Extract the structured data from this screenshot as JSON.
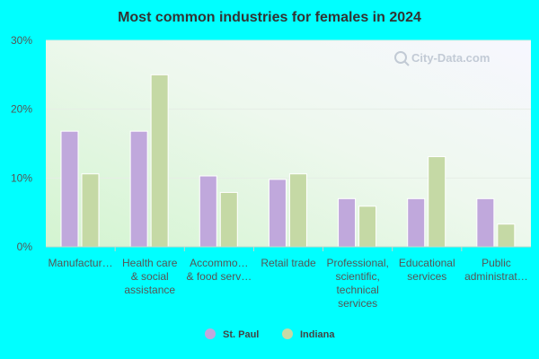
{
  "watermark": "City-Data.com",
  "chart_data": {
    "type": "bar",
    "title": "Most common industries for females in 2024",
    "xlabel": "",
    "ylabel": "",
    "ylim": [
      0,
      30
    ],
    "y_ticks": [
      0,
      10,
      20,
      30
    ],
    "y_tick_labels": [
      "0%",
      "10%",
      "20%",
      "30%"
    ],
    "grid": true,
    "legend_position": "bottom",
    "categories": [
      [
        "Manufactur…"
      ],
      [
        "Health care",
        "& social",
        "assistance"
      ],
      [
        "Accommo…",
        "& food serv…"
      ],
      [
        "Retail trade"
      ],
      [
        "Professional,",
        "scientific,",
        "technical",
        "services"
      ],
      [
        "Educational",
        "services"
      ],
      [
        "Public",
        "administrat…"
      ]
    ],
    "series": [
      {
        "name": "St. Paul",
        "color": "#C0A8DC",
        "values": [
          16.8,
          16.8,
          10.3,
          9.8,
          7.0,
          7.0,
          7.0
        ]
      },
      {
        "name": "Indiana",
        "color": "#C5D9A5",
        "values": [
          10.6,
          25.0,
          7.9,
          10.6,
          5.9,
          13.1,
          3.3
        ]
      }
    ]
  }
}
